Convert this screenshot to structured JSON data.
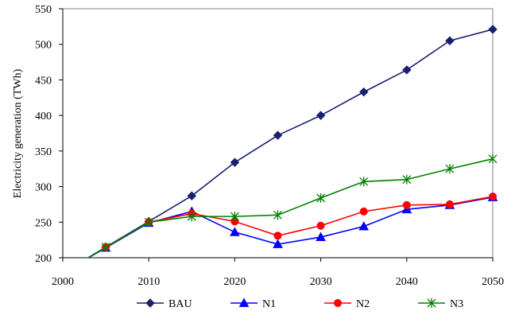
{
  "chart_data": {
    "type": "line",
    "title": "",
    "xlabel": "",
    "ylabel": "Electricity generation (TWh)",
    "xlim": [
      2000,
      2050
    ],
    "ylim": [
      200,
      550
    ],
    "xticks": [
      2000,
      2010,
      2020,
      2030,
      2040,
      2050
    ],
    "yticks": [
      200,
      250,
      300,
      350,
      400,
      450,
      500,
      550
    ],
    "grid": false,
    "legend_position": "bottom",
    "series": [
      {
        "name": "BAU",
        "color": "#1a1f6e",
        "marker": "diamond",
        "x": [
          2002,
          2005,
          2010,
          2015,
          2020,
          2025,
          2030,
          2035,
          2040,
          2045,
          2050
        ],
        "y": [
          193,
          215,
          251,
          287,
          334,
          372,
          400,
          433,
          464,
          505,
          521
        ]
      },
      {
        "name": "N1",
        "color": "#0000ff",
        "marker": "triangle",
        "x": [
          2002,
          2005,
          2010,
          2015,
          2020,
          2025,
          2030,
          2035,
          2040,
          2045,
          2050
        ],
        "y": [
          193,
          214,
          249,
          265,
          236,
          219,
          229,
          244,
          268,
          274,
          285
        ]
      },
      {
        "name": "N2",
        "color": "#ff0000",
        "marker": "circle",
        "x": [
          2002,
          2005,
          2010,
          2015,
          2020,
          2025,
          2030,
          2035,
          2040,
          2045,
          2050
        ],
        "y": [
          193,
          215,
          250,
          262,
          251,
          231,
          245,
          265,
          274,
          275,
          286
        ]
      },
      {
        "name": "N3",
        "color": "#008000",
        "marker": "star",
        "x": [
          2002,
          2005,
          2010,
          2015,
          2020,
          2025,
          2030,
          2035,
          2040,
          2045,
          2050
        ],
        "y": [
          193,
          215,
          250,
          258,
          258,
          260,
          284,
          307,
          310,
          325,
          339
        ]
      }
    ]
  }
}
